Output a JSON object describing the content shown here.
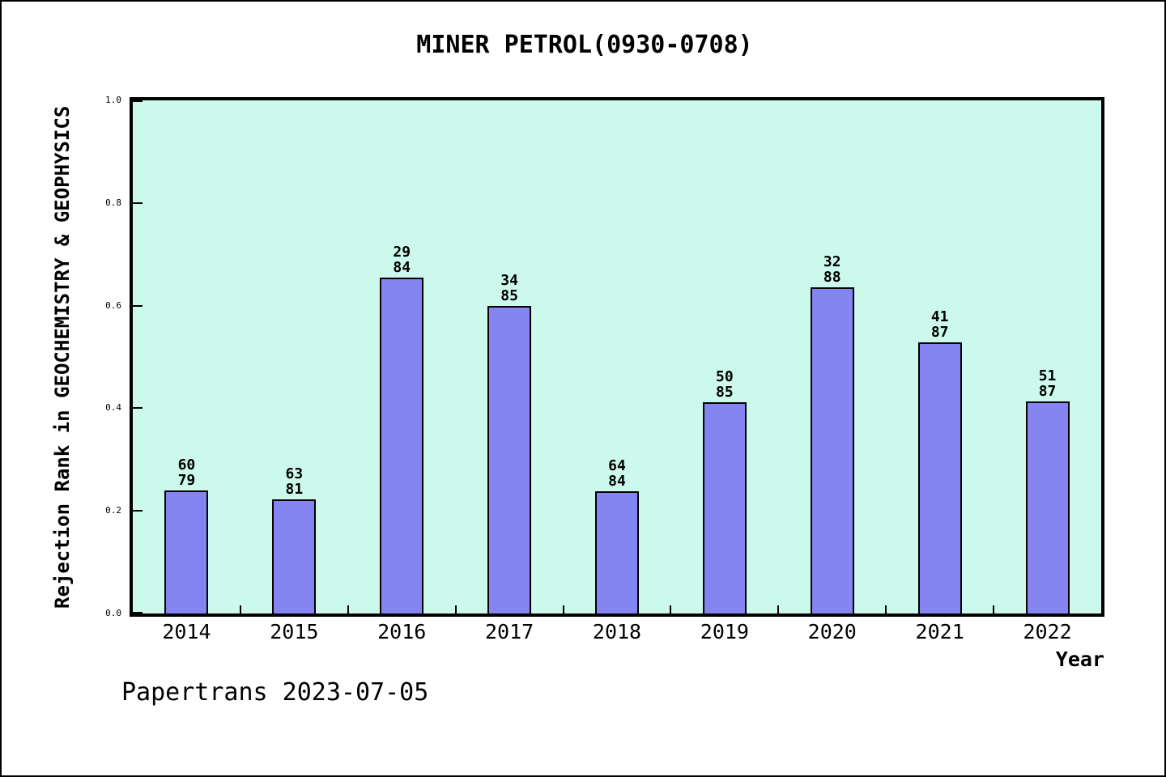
{
  "chart_data": {
    "type": "bar",
    "title": "MINER PETROL(0930-0708)",
    "xlabel": "Year",
    "ylabel": "Rejection Rank in GEOCHEMISTRY & GEOPHYSICS",
    "categories": [
      "2014",
      "2015",
      "2016",
      "2017",
      "2018",
      "2019",
      "2020",
      "2021",
      "2022"
    ],
    "series": [
      {
        "name": "Rejection Rank",
        "values": [
          0.2405,
          0.2222,
          0.6548,
          0.6,
          0.2381,
          0.4118,
          0.6364,
          0.5287,
          0.4138
        ],
        "labels_top": [
          "60",
          "63",
          "29",
          "34",
          "64",
          "50",
          "32",
          "41",
          "51"
        ],
        "labels_bottom": [
          "79",
          "81",
          "84",
          "85",
          "84",
          "85",
          "88",
          "87",
          "87"
        ]
      }
    ],
    "ylim": [
      0.0,
      1.0
    ],
    "yticks": [
      0.0,
      0.2,
      0.4,
      0.6,
      0.8,
      1.0
    ],
    "ytick_labels": [
      "0.0",
      "0.2",
      "0.4",
      "0.6",
      "0.8",
      "1.0"
    ],
    "grid": false,
    "legend": null,
    "colors": {
      "bar_fill": "#8585f1",
      "bar_border": "#000000",
      "plot_bg": "#cdf8ec",
      "page_bg": "#ffffff",
      "text": "#000000"
    }
  },
  "footer": {
    "text": "Papertrans 2023-07-05"
  }
}
